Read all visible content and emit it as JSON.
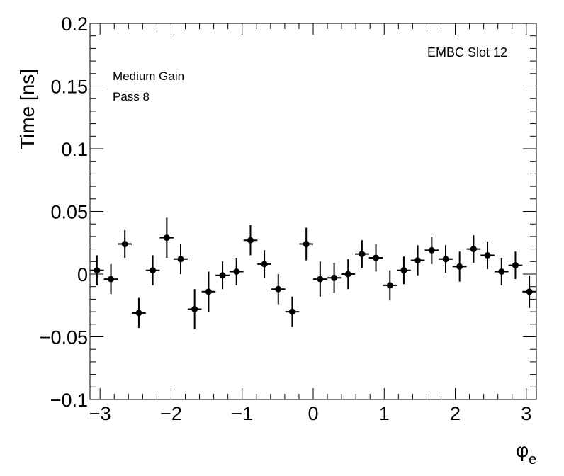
{
  "chart_data": {
    "type": "scatter",
    "title": "EMBC Slot 12",
    "annotations": [
      "Medium Gain",
      "Pass 8"
    ],
    "xlabel": "φ",
    "xlabel_sub": "e",
    "ylabel": "Time [ns]",
    "xlim": [
      -3.1416,
      3.1416
    ],
    "ylim": [
      -0.1,
      0.2
    ],
    "x_ticks": [
      -3,
      -2,
      -1,
      0,
      1,
      2,
      3
    ],
    "x_tick_labels": [
      "−3",
      "−2",
      "−1",
      "0",
      "1",
      "2",
      "3"
    ],
    "y_ticks": [
      -0.1,
      -0.05,
      0,
      0.05,
      0.1,
      0.15,
      0.2
    ],
    "y_tick_labels": [
      "−0.1",
      "−0.05",
      "0",
      "0.05",
      "0.1",
      "0.15",
      "0.2"
    ],
    "x_bin_half_width": 0.0982,
    "series": [
      {
        "x": [
          -3.043,
          -2.847,
          -2.651,
          -2.454,
          -2.258,
          -2.061,
          -1.865,
          -1.669,
          -1.472,
          -1.276,
          -1.08,
          -0.883,
          -0.687,
          -0.491,
          -0.295,
          -0.098,
          0.098,
          0.295,
          0.491,
          0.687,
          0.883,
          1.08,
          1.276,
          1.472,
          1.669,
          1.865,
          2.061,
          2.258,
          2.454,
          2.651,
          2.847,
          3.043
        ],
        "y": [
          0.003,
          -0.004,
          0.024,
          -0.031,
          0.003,
          0.029,
          0.012,
          -0.028,
          -0.014,
          -0.001,
          0.002,
          0.027,
          0.008,
          -0.012,
          -0.03,
          0.024,
          -0.004,
          -0.003,
          0.0,
          0.016,
          0.013,
          -0.009,
          0.003,
          0.011,
          0.019,
          0.012,
          0.006,
          0.02,
          0.015,
          0.002,
          0.007,
          -0.014
        ],
        "yerr": [
          0.012,
          0.012,
          0.011,
          0.012,
          0.012,
          0.016,
          0.012,
          0.016,
          0.016,
          0.011,
          0.011,
          0.012,
          0.011,
          0.012,
          0.012,
          0.013,
          0.014,
          0.012,
          0.012,
          0.011,
          0.011,
          0.012,
          0.011,
          0.012,
          0.011,
          0.011,
          0.012,
          0.011,
          0.011,
          0.011,
          0.011,
          0.013
        ]
      }
    ],
    "grid": false,
    "marker_color": "#000000"
  }
}
